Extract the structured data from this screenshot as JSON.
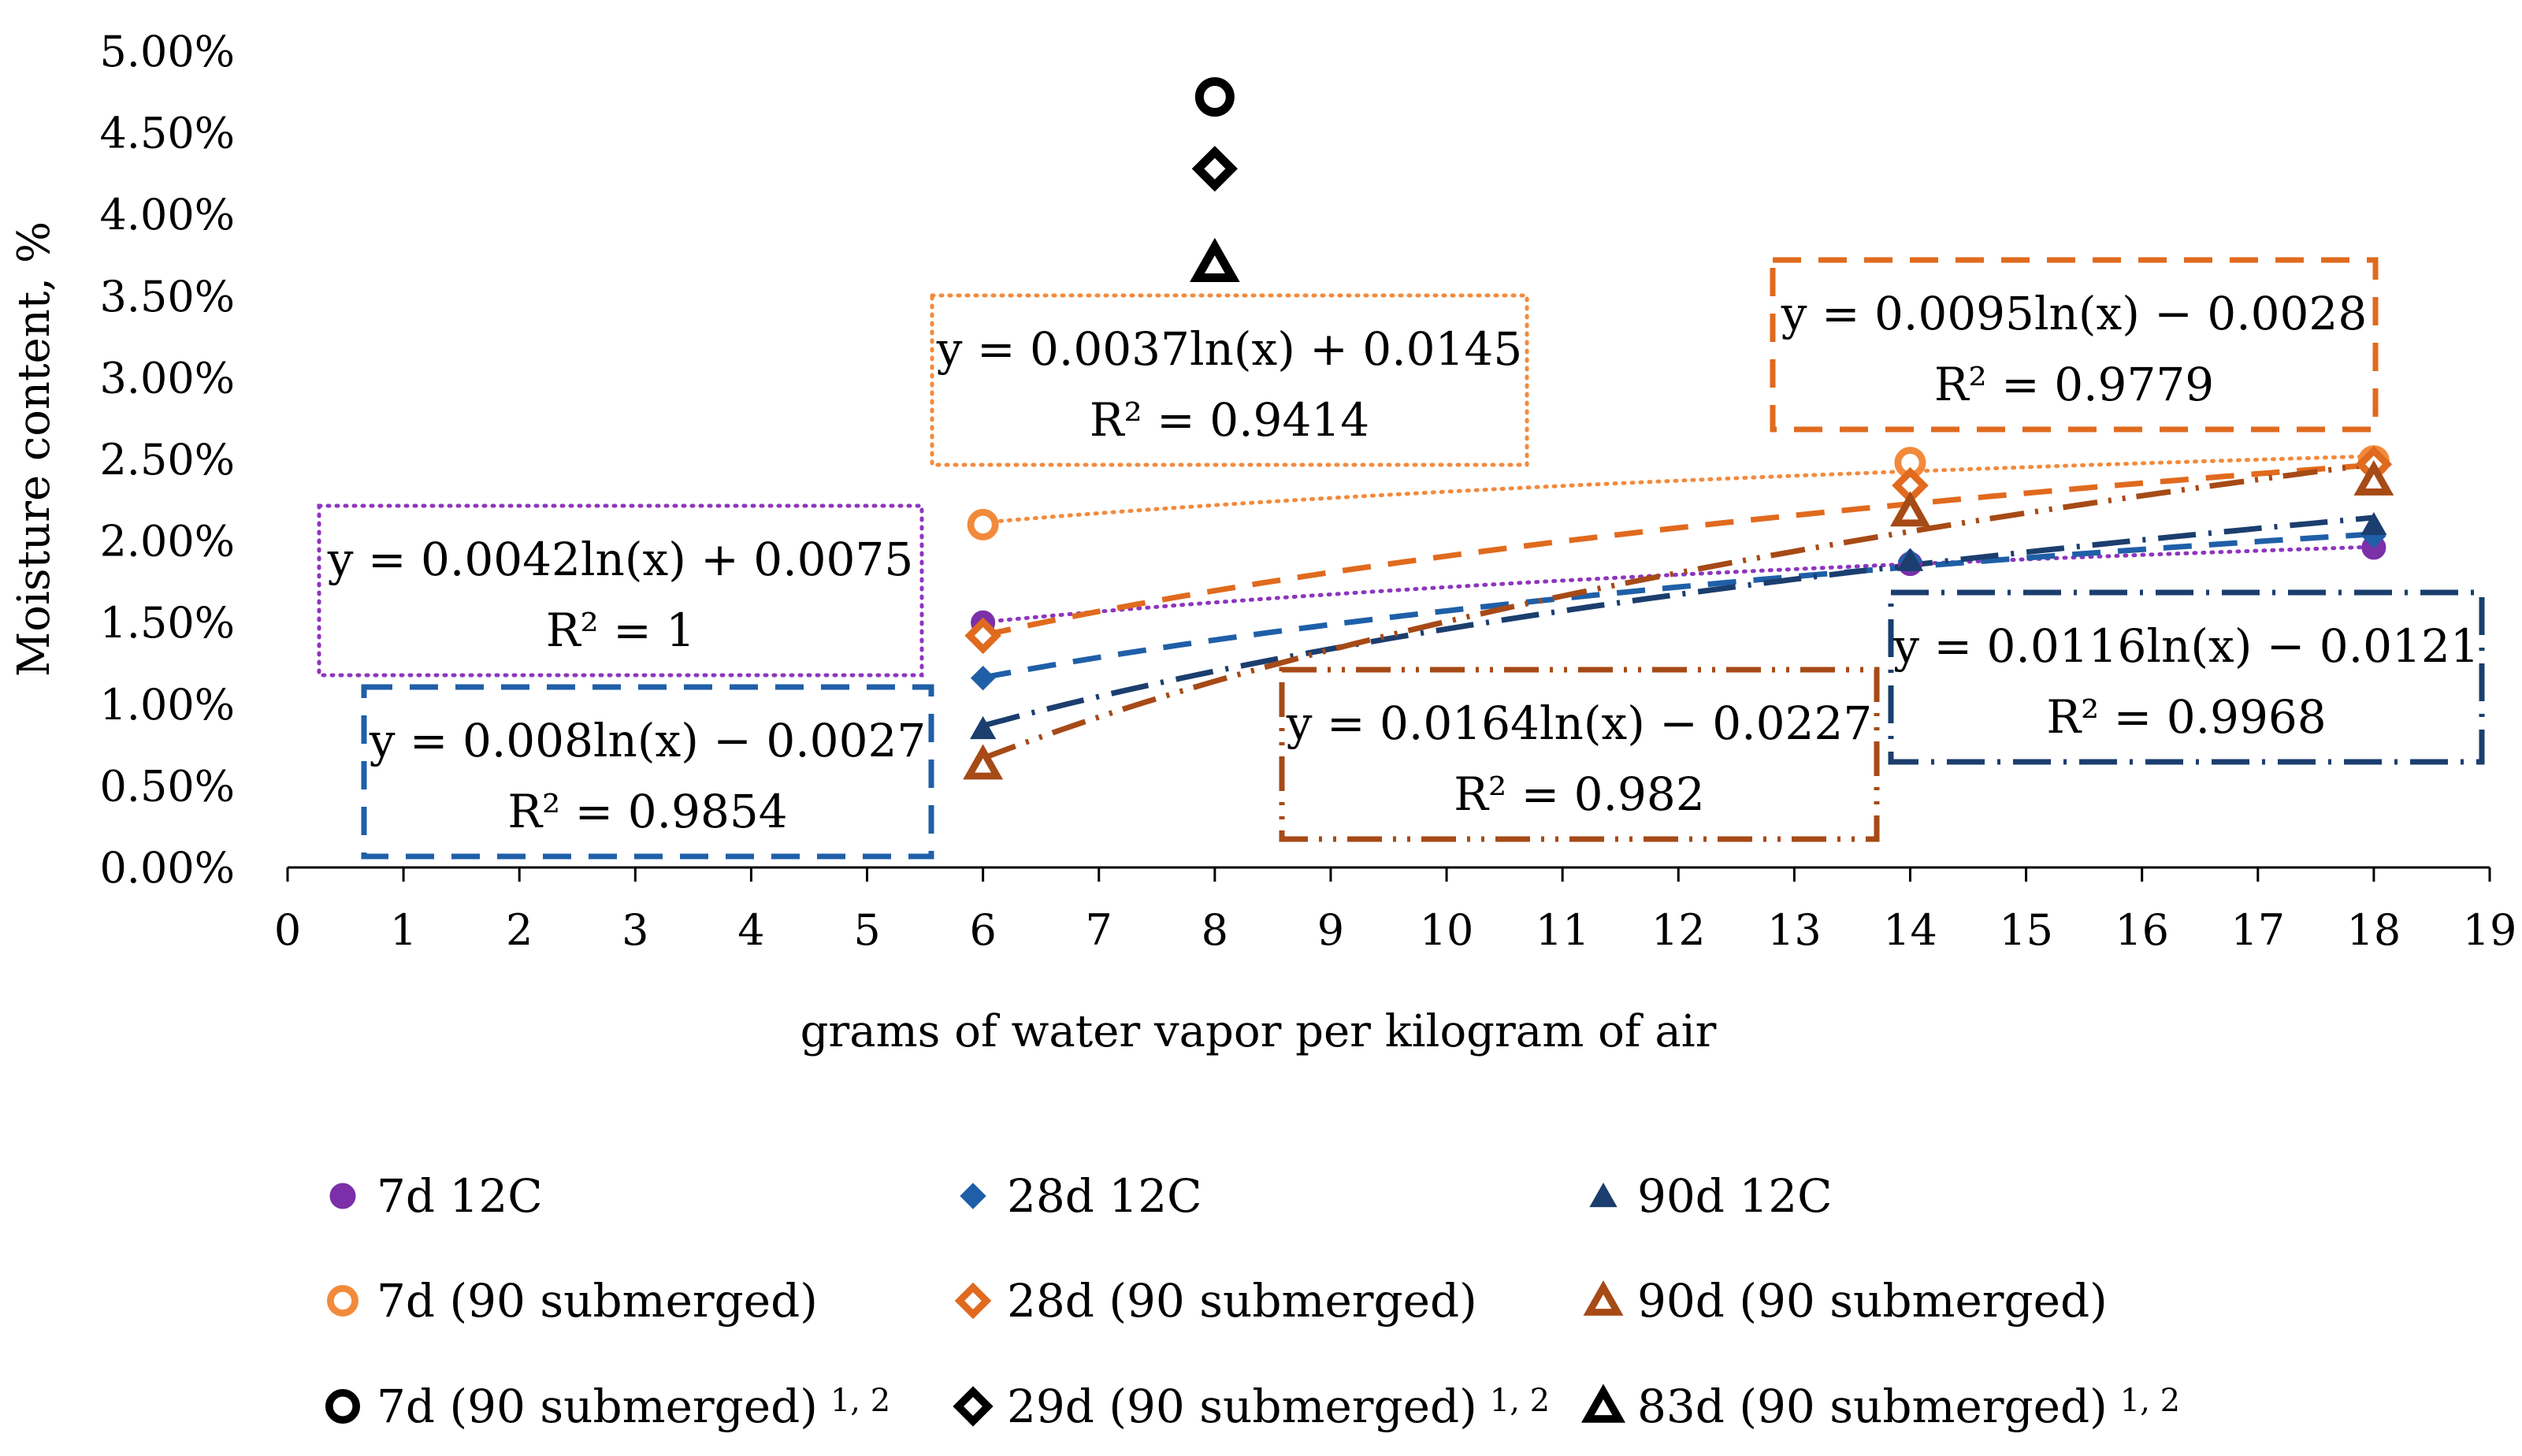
{
  "chart_data": {
    "type": "scatter",
    "title": "",
    "xlabel": "grams of water vapor per kilogram of air",
    "ylabel": "Moisture content, %",
    "xlim": [
      0,
      19
    ],
    "ylim": [
      0,
      0.05
    ],
    "x_ticks": [
      "0",
      "1",
      "2",
      "3",
      "4",
      "5",
      "6",
      "7",
      "8",
      "9",
      "10",
      "11",
      "12",
      "13",
      "14",
      "15",
      "16",
      "17",
      "18",
      "19"
    ],
    "y_ticks": [
      "0.00%",
      "0.50%",
      "1.00%",
      "1.50%",
      "2.00%",
      "2.50%",
      "3.00%",
      "3.50%",
      "4.00%",
      "4.50%",
      "5.00%"
    ],
    "series": [
      {
        "name": "7d 12C",
        "marker": "circle-filled",
        "color": "#7B2FA8",
        "x": [
          6,
          14,
          18
        ],
        "y": [
          0.015,
          0.0186,
          0.0196
        ],
        "trendline": {
          "a": 0.0042,
          "b": 0.0075,
          "style": "dotted",
          "color": "#8E35BE"
        }
      },
      {
        "name": "28d 12C",
        "marker": "diamond-filled",
        "color": "#1F5FA8",
        "x": [
          6,
          14,
          18
        ],
        "y": [
          0.0116,
          0.0188,
          0.0203
        ],
        "trendline": {
          "a": 0.008,
          "b": -0.0027,
          "style": "dashed",
          "color": "#1F5FA8"
        }
      },
      {
        "name": "90d 12C",
        "marker": "triangle-filled",
        "color": "#1B3E6E",
        "x": [
          6,
          14,
          18
        ],
        "y": [
          0.0085,
          0.0188,
          0.021
        ],
        "trendline": {
          "a": 0.0116,
          "b": -0.0121,
          "style": "dashdot",
          "color": "#1B3E6E"
        }
      },
      {
        "name": "7d (90 submerged)",
        "marker": "circle-open",
        "color": "#F28A3C",
        "x": [
          6,
          14,
          18
        ],
        "y": [
          0.021,
          0.0248,
          0.0249
        ],
        "trendline": {
          "a": 0.0037,
          "b": 0.0145,
          "style": "dotted",
          "color": "#F28A3C"
        }
      },
      {
        "name": "28d (90 submerged)",
        "marker": "diamond-open",
        "color": "#E06A1E",
        "x": [
          6,
          14,
          18
        ],
        "y": [
          0.0142,
          0.0234,
          0.0247
        ],
        "trendline": {
          "a": 0.0095,
          "b": -0.0028,
          "style": "dashed",
          "color": "#E06A1E"
        }
      },
      {
        "name": "90d (90 submerged)",
        "marker": "triangle-open",
        "color": "#A64A16",
        "x": [
          6,
          14,
          18
        ],
        "y": [
          0.0063,
          0.0218,
          0.0237
        ],
        "trendline": {
          "a": 0.0164,
          "b": -0.0227,
          "style": "dashdotdot",
          "color": "#A64A16"
        }
      },
      {
        "name": "7d (90 submerged)",
        "name_sup": "1, 2",
        "marker": "circle-open",
        "color": "#000000",
        "x": [
          8
        ],
        "y": [
          0.0472
        ]
      },
      {
        "name": "29d (90 submerged)",
        "name_sup": "1, 2",
        "marker": "diamond-open",
        "color": "#000000",
        "x": [
          8
        ],
        "y": [
          0.0428
        ]
      },
      {
        "name": "83d (90 submerged)",
        "name_sup": "1, 2",
        "marker": "triangle-open",
        "color": "#000000",
        "x": [
          8
        ],
        "y": [
          0.037
        ]
      }
    ],
    "annotations": [
      {
        "series": 0,
        "line1": "y = 0.0042ln(x) + 0.0075",
        "line2": "R² = 1",
        "border": "dotted",
        "color": "#8E35BE"
      },
      {
        "series": 1,
        "line1": "y = 0.008ln(x) − 0.0027",
        "line2": "R² = 0.9854",
        "border": "dashed",
        "color": "#1F5FA8"
      },
      {
        "series": 2,
        "line1": "y = 0.0116ln(x) − 0.0121",
        "line2": "R² = 0.9968",
        "border": "dashdot",
        "color": "#1B3E6E"
      },
      {
        "series": 3,
        "line1": "y = 0.0037ln(x) + 0.0145",
        "line2": "R² = 0.9414",
        "border": "dotted",
        "color": "#F28A3C"
      },
      {
        "series": 4,
        "line1": "y = 0.0095ln(x) − 0.0028",
        "line2": "R² = 0.9779",
        "border": "dashed",
        "color": "#E06A1E"
      },
      {
        "series": 5,
        "line1": "y = 0.0164ln(x) − 0.0227",
        "line2": "R² = 0.982",
        "border": "dashdotdot",
        "color": "#A64A16"
      }
    ],
    "legend_position": "bottom"
  }
}
